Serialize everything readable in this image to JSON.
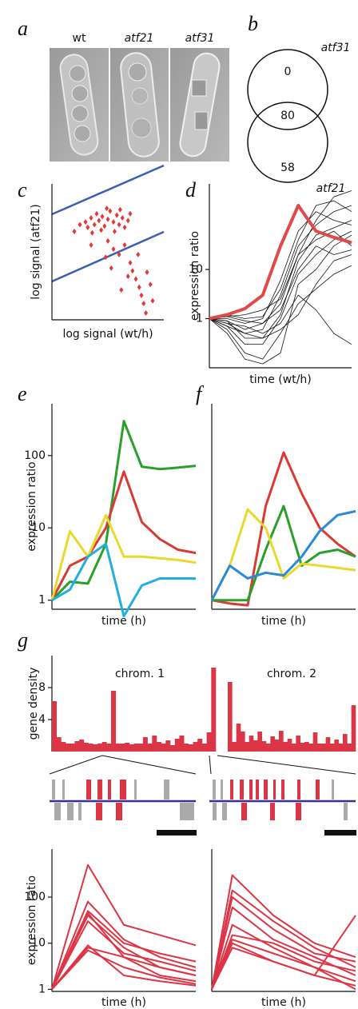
{
  "panel_labels": [
    "a",
    "b",
    "c",
    "d",
    "e",
    "f",
    "g"
  ],
  "panel_a": {
    "labels": [
      "wt",
      "atf21",
      "atf31"
    ]
  },
  "panel_b": {
    "set_labels": [
      "atf31",
      "atf21"
    ],
    "counts": [
      0,
      80,
      58
    ]
  },
  "chart_data": [
    {
      "type": "scatter",
      "xlabel": "log signal (wt/h)",
      "ylabel": "log signal (atf21)",
      "xlim": [
        0,
        10
      ],
      "ylim": [
        0,
        10
      ],
      "color": "#e03a3a",
      "x": [
        2,
        2.5,
        3,
        3.2,
        3.5,
        3.8,
        4,
        4.2,
        4.5,
        4.7,
        5,
        5.2,
        5.5,
        5.8,
        6,
        6.3,
        6.5,
        6.8,
        7,
        4.4,
        5.6,
        3.6,
        6.1,
        4.9,
        5,
        5.5,
        6,
        6.5,
        7,
        7.2,
        7.5,
        7.8,
        8,
        8.2,
        8.4,
        6.8,
        7.7,
        8.5,
        8.8,
        9,
        5.3,
        4.8,
        6.2,
        3.5
      ],
      "values": [
        6.5,
        7,
        7.2,
        6.8,
        7.5,
        7,
        7.8,
        7.3,
        7.6,
        6.9,
        7.4,
        8,
        7.2,
        7.7,
        7,
        7.5,
        6.8,
        7.3,
        7.8,
        6.6,
        6.5,
        6.4,
        8.1,
        8.2,
        5.8,
        5.2,
        4.8,
        5.5,
        4.2,
        3.6,
        3,
        2.4,
        1.8,
        1.2,
        0.5,
        3.2,
        4.8,
        3.5,
        2.6,
        1.4,
        3.8,
        4.6,
        2.2,
        5.5
      ]
    },
    {
      "type": "line",
      "xlabel": "time (wt/h)",
      "ylabel": "expression ratio",
      "log_y": true,
      "x": [
        0,
        1,
        2,
        3,
        4,
        5,
        6,
        7,
        8
      ],
      "xlim": [
        0,
        8
      ],
      "ylim": [
        0.1,
        550
      ],
      "yticks": [
        1,
        10
      ],
      "series": [
        {
          "color": "#111111",
          "line_width": 0.8,
          "values": [
            1,
            1.1,
            0.9,
            0.8,
            2,
            20,
            100,
            300,
            400
          ]
        },
        {
          "color": "#111111",
          "line_width": 0.8,
          "values": [
            1,
            0.8,
            0.5,
            0.6,
            3,
            30,
            80,
            150,
            200
          ]
        },
        {
          "color": "#111111",
          "line_width": 0.8,
          "values": [
            1,
            0.7,
            0.3,
            0.3,
            1,
            8,
            20,
            40,
            60
          ]
        },
        {
          "color": "#111111",
          "line_width": 0.8,
          "values": [
            1,
            0.5,
            0.15,
            0.12,
            0.2,
            5,
            10,
            30,
            50
          ]
        },
        {
          "color": "#111111",
          "line_width": 0.8,
          "values": [
            1,
            1.2,
            1,
            1.1,
            4,
            40,
            200,
            250,
            150
          ]
        },
        {
          "color": "#111111",
          "line_width": 0.8,
          "values": [
            1,
            0.9,
            0.6,
            0.8,
            1.5,
            10,
            30,
            20,
            25
          ]
        },
        {
          "color": "#111111",
          "line_width": 0.8,
          "values": [
            1,
            0.6,
            0.2,
            0.15,
            0.5,
            2,
            4,
            8,
            12
          ]
        },
        {
          "color": "#111111",
          "line_width": 0.8,
          "values": [
            1,
            1,
            0.8,
            1,
            6,
            60,
            150,
            100,
            80
          ]
        },
        {
          "color": "#111111",
          "line_width": 0.8,
          "values": [
            1,
            0.8,
            0.7,
            0.5,
            0.8,
            3,
            1.5,
            0.5,
            0.3
          ]
        },
        {
          "color": "#111111",
          "line_width": 0.8,
          "values": [
            1,
            0.9,
            0.4,
            0.4,
            1.2,
            15,
            50,
            70,
            100
          ]
        },
        {
          "color": "#111111",
          "line_width": 0.8,
          "values": [
            1,
            1.1,
            1.2,
            1.5,
            2.5,
            20,
            40,
            60,
            30
          ]
        },
        {
          "color": "#111111",
          "line_width": 0.8,
          "values": [
            1,
            0.7,
            0.5,
            0.4,
            0.6,
            1.2,
            5,
            15,
            20
          ]
        },
        {
          "color": "#e04a4a",
          "line_width": 4,
          "values": [
            1,
            1.2,
            1.6,
            3,
            30,
            200,
            60,
            45,
            35
          ]
        }
      ]
    },
    {
      "type": "line",
      "xlabel": "time (h)",
      "ylabel": "expression ratio",
      "log_y": true,
      "x": [
        0,
        1,
        2,
        3,
        4,
        5,
        6,
        7,
        8
      ],
      "xlim": [
        0,
        8
      ],
      "ylim": [
        0.75,
        520
      ],
      "yticks": [
        1,
        10,
        100
      ],
      "series": [
        {
          "color": "#2aa02a",
          "line_width": 3,
          "values": [
            1,
            1.8,
            1.7,
            6,
            300,
            70,
            65,
            68,
            72
          ]
        },
        {
          "color": "#d83a34",
          "line_width": 3,
          "values": [
            1,
            3,
            4,
            10,
            60,
            12,
            7,
            5,
            4.5
          ]
        },
        {
          "color": "#e8d830",
          "line_width": 3,
          "values": [
            1,
            9,
            4,
            15,
            4,
            4,
            3.8,
            3.6,
            3.3
          ]
        },
        {
          "color": "#20b0e0",
          "line_width": 3,
          "values": [
            1,
            1.4,
            4,
            6,
            0.6,
            1.6,
            2,
            2,
            2
          ]
        }
      ]
    },
    {
      "type": "line",
      "xlabel": "time (h)",
      "log_y": true,
      "x": [
        0,
        1,
        2,
        3,
        4,
        5,
        6,
        7,
        8
      ],
      "xlim": [
        0,
        8
      ],
      "ylim": [
        0.75,
        520
      ],
      "series": [
        {
          "color": "#d83a34",
          "line_width": 3,
          "values": [
            1,
            0.9,
            0.85,
            20,
            110,
            30,
            10,
            6,
            4
          ]
        },
        {
          "color": "#2aa02a",
          "line_width": 3,
          "values": [
            1,
            1,
            1,
            5,
            20,
            3,
            4.5,
            5,
            4
          ]
        },
        {
          "color": "#e8d830",
          "line_width": 3,
          "values": [
            1,
            3,
            18,
            10,
            2,
            3.2,
            3,
            2.8,
            2.6
          ]
        },
        {
          "color": "#2a8ad8",
          "line_width": 3,
          "values": [
            1,
            3,
            2,
            2.4,
            2.2,
            4,
            9,
            15,
            17
          ]
        }
      ]
    },
    {
      "type": "bar",
      "title": "chrom. 1",
      "ylabel": "gene density",
      "ylim": [
        0,
        12
      ],
      "yticks": [
        4,
        8
      ],
      "color": "#dc3545",
      "values": [
        6.3,
        1.8,
        1.2,
        1,
        1,
        1.3,
        1.5,
        1.1,
        1,
        0.9,
        1,
        1.2,
        1,
        7.6,
        1,
        1,
        1.1,
        0.9,
        1,
        1,
        1.8,
        1,
        2,
        1.2,
        1,
        1.4,
        0.8,
        1.6,
        2,
        1,
        0.9,
        1.2,
        1.6,
        1,
        2.4,
        10.5
      ]
    },
    {
      "type": "bar",
      "title": "chrom. 2",
      "ylim": [
        0,
        12
      ],
      "color": "#dc3545",
      "values": [
        8.7,
        1.2,
        3.5,
        2.5,
        1.2,
        2,
        1.4,
        2.5,
        1.3,
        1,
        1.9,
        1.5,
        2.6,
        1.2,
        1.6,
        1,
        2,
        1.1,
        1.2,
        1,
        2.4,
        1,
        1,
        1.8,
        1,
        1.5,
        1,
        2.2,
        1,
        5.8
      ]
    },
    {
      "type": "line",
      "xlabel": "time (h)",
      "ylabel": "expression ratio",
      "log_y": true,
      "x": [
        0,
        1,
        2,
        3,
        4
      ],
      "xlim": [
        0,
        4
      ],
      "ylim": [
        0.9,
        1100
      ],
      "yticks": [
        1,
        10,
        100
      ],
      "series": [
        {
          "color": "#dc3545",
          "line_width": 2,
          "values": [
            1,
            500,
            25,
            15,
            9
          ]
        },
        {
          "color": "#dc3545",
          "line_width": 2,
          "values": [
            1,
            80,
            12,
            5,
            3
          ]
        },
        {
          "color": "#dc3545",
          "line_width": 2,
          "values": [
            1,
            50,
            10,
            6,
            4
          ]
        },
        {
          "color": "#dc3545",
          "line_width": 2,
          "values": [
            1,
            40,
            8,
            3,
            2
          ]
        },
        {
          "color": "#dc3545",
          "line_width": 2,
          "values": [
            1,
            30,
            6,
            4,
            2.5
          ]
        },
        {
          "color": "#dc3545",
          "line_width": 2,
          "values": [
            1,
            45,
            5,
            2,
            1.5
          ]
        },
        {
          "color": "#dc3545",
          "line_width": 2,
          "values": [
            1,
            8,
            5,
            3,
            2
          ]
        },
        {
          "color": "#dc3545",
          "line_width": 2,
          "values": [
            1,
            7,
            3,
            1.8,
            1.3
          ]
        },
        {
          "color": "#dc3545",
          "line_width": 2,
          "values": [
            1,
            9,
            2,
            1.5,
            1.2
          ]
        }
      ]
    },
    {
      "type": "line",
      "xlabel": "time (h)",
      "log_y": true,
      "x": [
        0,
        1,
        3,
        5,
        7
      ],
      "xlim": [
        0,
        7
      ],
      "ylim": [
        0.9,
        1100
      ],
      "series": [
        {
          "color": "#dc3545",
          "line_width": 2,
          "values": [
            1,
            300,
            40,
            10,
            5
          ]
        },
        {
          "color": "#dc3545",
          "line_width": 2,
          "values": [
            1,
            140,
            30,
            8,
            3
          ]
        },
        {
          "color": "#dc3545",
          "line_width": 2,
          "values": [
            1,
            100,
            20,
            6,
            4
          ]
        },
        {
          "color": "#dc3545",
          "line_width": 2,
          "values": [
            1,
            60,
            12,
            5,
            2
          ]
        },
        {
          "color": "#dc3545",
          "line_width": 2,
          "values": [
            1,
            15,
            10,
            4,
            2.5
          ]
        },
        {
          "color": "#dc3545",
          "line_width": 2,
          "values": [
            1,
            12,
            6,
            3,
            1.5
          ]
        },
        {
          "color": "#dc3545",
          "line_width": 2,
          "values": [
            1,
            10,
            4,
            2,
            40
          ]
        },
        {
          "color": "#dc3545",
          "line_width": 2,
          "values": [
            1,
            8,
            4,
            2,
            1.2
          ]
        },
        {
          "color": "#dc3545",
          "line_width": 2,
          "values": [
            1,
            25,
            8,
            3,
            1
          ]
        }
      ]
    }
  ]
}
